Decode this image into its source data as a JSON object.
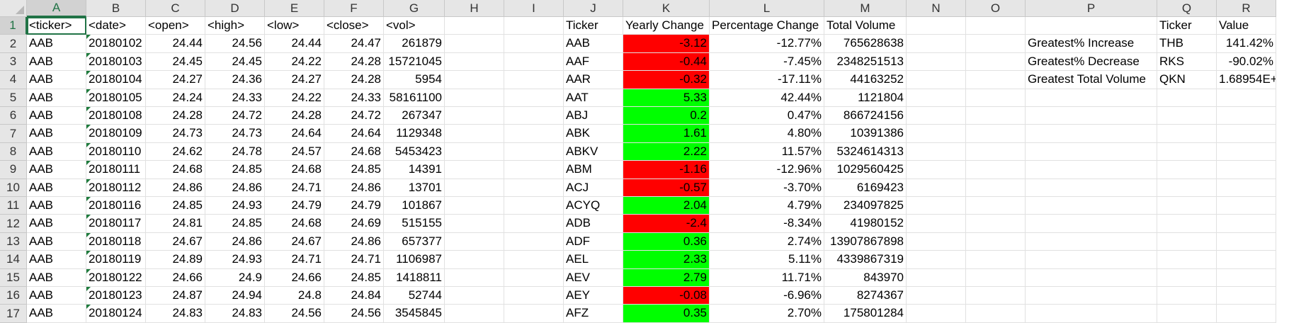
{
  "column_headers": [
    "A",
    "B",
    "C",
    "D",
    "E",
    "F",
    "G",
    "H",
    "I",
    "J",
    "K",
    "L",
    "M",
    "N",
    "O",
    "P",
    "Q",
    "R"
  ],
  "row_numbers": [
    "1",
    "2",
    "3",
    "4",
    "5",
    "6",
    "7",
    "8",
    "9",
    "10",
    "11",
    "12",
    "13",
    "14",
    "15",
    "16",
    "17"
  ],
  "selected_cell": "A1",
  "colors": {
    "negative_fill": "#ff0000",
    "positive_fill": "#00ff00",
    "selection_accent": "#217346"
  },
  "raw_data": {
    "headers": [
      "<ticker>",
      "<date>",
      "<open>",
      "<high>",
      "<low>",
      "<close>",
      "<vol>"
    ],
    "rows": [
      [
        "AAB",
        "20180102",
        "24.44",
        "24.56",
        "24.44",
        "24.47",
        "261879"
      ],
      [
        "AAB",
        "20180103",
        "24.45",
        "24.45",
        "24.22",
        "24.28",
        "15721045"
      ],
      [
        "AAB",
        "20180104",
        "24.27",
        "24.36",
        "24.27",
        "24.28",
        "5954"
      ],
      [
        "AAB",
        "20180105",
        "24.24",
        "24.33",
        "24.22",
        "24.33",
        "58161100"
      ],
      [
        "AAB",
        "20180108",
        "24.28",
        "24.72",
        "24.28",
        "24.72",
        "267347"
      ],
      [
        "AAB",
        "20180109",
        "24.73",
        "24.73",
        "24.64",
        "24.64",
        "1129348"
      ],
      [
        "AAB",
        "20180110",
        "24.62",
        "24.78",
        "24.57",
        "24.68",
        "5453423"
      ],
      [
        "AAB",
        "20180111",
        "24.68",
        "24.85",
        "24.68",
        "24.85",
        "14391"
      ],
      [
        "AAB",
        "20180112",
        "24.86",
        "24.86",
        "24.71",
        "24.86",
        "13701"
      ],
      [
        "AAB",
        "20180116",
        "24.85",
        "24.93",
        "24.79",
        "24.79",
        "101867"
      ],
      [
        "AAB",
        "20180117",
        "24.81",
        "24.85",
        "24.68",
        "24.69",
        "515155"
      ],
      [
        "AAB",
        "20180118",
        "24.67",
        "24.86",
        "24.67",
        "24.86",
        "657377"
      ],
      [
        "AAB",
        "20180119",
        "24.89",
        "24.93",
        "24.71",
        "24.71",
        "1106987"
      ],
      [
        "AAB",
        "20180122",
        "24.66",
        "24.9",
        "24.66",
        "24.85",
        "1418811"
      ],
      [
        "AAB",
        "20180123",
        "24.87",
        "24.94",
        "24.8",
        "24.84",
        "52744"
      ],
      [
        "AAB",
        "20180124",
        "24.83",
        "24.83",
        "24.56",
        "24.56",
        "3545845"
      ]
    ]
  },
  "summary": {
    "headers": [
      "Ticker",
      "Yearly Change",
      "Percentage Change",
      "Total Volume"
    ],
    "rows": [
      {
        "ticker": "AAB",
        "change": "-3.12",
        "pct": "-12.77%",
        "volume": "765628638",
        "positive": false
      },
      {
        "ticker": "AAF",
        "change": "-0.44",
        "pct": "-7.45%",
        "volume": "2348251513",
        "positive": false
      },
      {
        "ticker": "AAR",
        "change": "-0.32",
        "pct": "-17.11%",
        "volume": "44163252",
        "positive": false
      },
      {
        "ticker": "AAT",
        "change": "5.33",
        "pct": "42.44%",
        "volume": "1121804",
        "positive": true
      },
      {
        "ticker": "ABJ",
        "change": "0.2",
        "pct": "0.47%",
        "volume": "866724156",
        "positive": true
      },
      {
        "ticker": "ABK",
        "change": "1.61",
        "pct": "4.80%",
        "volume": "10391386",
        "positive": true
      },
      {
        "ticker": "ABKV",
        "change": "2.22",
        "pct": "11.57%",
        "volume": "5324614313",
        "positive": true
      },
      {
        "ticker": "ABM",
        "change": "-1.16",
        "pct": "-12.96%",
        "volume": "1029560425",
        "positive": false
      },
      {
        "ticker": "ACJ",
        "change": "-0.57",
        "pct": "-3.70%",
        "volume": "6169423",
        "positive": false
      },
      {
        "ticker": "ACYQ",
        "change": "2.04",
        "pct": "4.79%",
        "volume": "234097825",
        "positive": true
      },
      {
        "ticker": "ADB",
        "change": "-2.4",
        "pct": "-8.34%",
        "volume": "41980152",
        "positive": false
      },
      {
        "ticker": "ADF",
        "change": "0.36",
        "pct": "2.74%",
        "volume": "13907867898",
        "positive": true
      },
      {
        "ticker": "AEL",
        "change": "2.33",
        "pct": "5.11%",
        "volume": "4339867319",
        "positive": true
      },
      {
        "ticker": "AEV",
        "change": "2.79",
        "pct": "11.71%",
        "volume": "843970",
        "positive": true
      },
      {
        "ticker": "AEY",
        "change": "-0.08",
        "pct": "-6.96%",
        "volume": "8274367",
        "positive": false
      },
      {
        "ticker": "AFZ",
        "change": "0.35",
        "pct": "2.70%",
        "volume": "175801284",
        "positive": true
      }
    ]
  },
  "greatest": {
    "headers": [
      "Ticker",
      "Value"
    ],
    "rows": [
      {
        "label": "Greatest% Increase",
        "ticker": "THB",
        "value": "141.42%"
      },
      {
        "label": "Greatest% Decrease",
        "ticker": "RKS",
        "value": "-90.02%"
      },
      {
        "label": "Greatest Total Volume",
        "ticker": "QKN",
        "value": "1.68954E+12"
      }
    ]
  }
}
